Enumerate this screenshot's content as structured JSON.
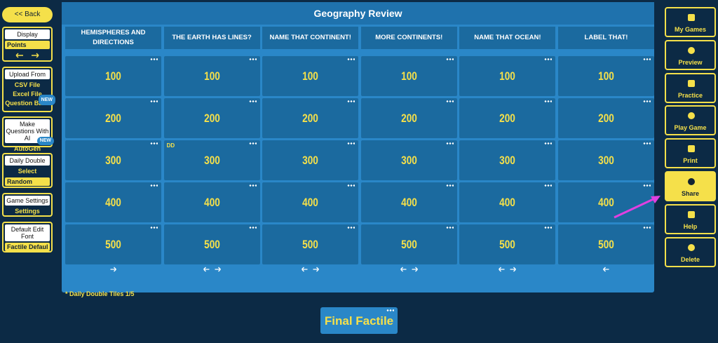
{
  "sidebar_left": {
    "back": "<< Back",
    "display": {
      "label": "Display",
      "select": "Points"
    },
    "upload": {
      "label": "Upload From",
      "items": [
        "CSV File",
        "Excel File",
        "Question Bank"
      ],
      "badge": "NEW"
    },
    "make_questions": {
      "label": "Make Questions With AI",
      "badge": "NEW",
      "action": "AutoGen"
    },
    "daily_double": {
      "label": "Daily Double",
      "action": "Select",
      "select": "Random"
    },
    "game_settings": {
      "label": "Game Settings",
      "action": "Settings"
    },
    "font": {
      "label": "Default Edit Font",
      "select": "Factile Defaul"
    }
  },
  "board": {
    "title": "Geography Review",
    "categories": [
      "HEMISPHERES AND DIRECTIONS",
      "THE EARTH HAS LINES?",
      "NAME THAT CONTINENT!",
      "MORE CONTINENTS!",
      "NAME THAT OCEAN!",
      "LABEL THAT!"
    ],
    "points": [
      100,
      200,
      300,
      400,
      500
    ],
    "dd_marker": "DD",
    "footnote": "* Daily Double Tiles 1/5"
  },
  "final": "Final Factile",
  "sidebar_right": [
    "My Games",
    "Preview",
    "Practice",
    "Play Game",
    "Print",
    "Share",
    "Help",
    "Delete"
  ]
}
